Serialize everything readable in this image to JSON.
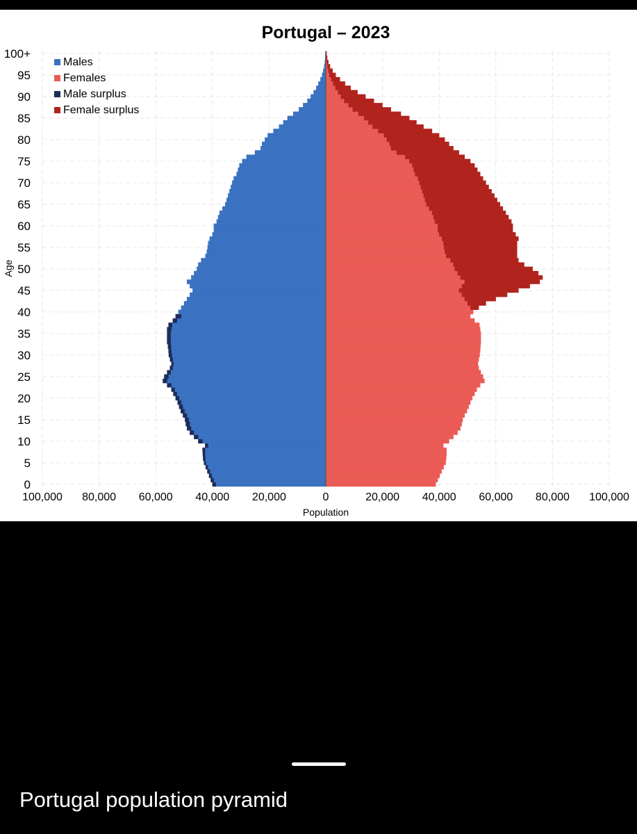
{
  "caption": "Portugal population pyramid",
  "colors": {
    "males": "#3a72c1",
    "females": "#eb5b55",
    "male_surplus": "#1c2d5a",
    "female_surplus": "#b1231d",
    "axis": "#555555",
    "grid": "#e6e6e6"
  },
  "chart_data": {
    "type": "population-pyramid",
    "title": "Portugal – 2023",
    "xlabel": "Population",
    "ylabel": "Age",
    "xlim": [
      -100000,
      100000
    ],
    "x_ticks": [
      -100000,
      -80000,
      -60000,
      -40000,
      -20000,
      0,
      20000,
      40000,
      60000,
      80000,
      100000
    ],
    "x_tick_labels": [
      "100,000",
      "80,000",
      "60,000",
      "40,000",
      "20,000",
      "0",
      "20,000",
      "40,000",
      "60,000",
      "80,000",
      "100,000"
    ],
    "y_ticks": [
      0,
      5,
      10,
      15,
      20,
      25,
      30,
      35,
      40,
      45,
      50,
      55,
      60,
      65,
      70,
      75,
      80,
      85,
      90,
      95,
      100
    ],
    "y_tick_labels": [
      "0",
      "5",
      "10",
      "15",
      "20",
      "25",
      "30",
      "35",
      "40",
      "45",
      "50",
      "55",
      "60",
      "65",
      "70",
      "75",
      "80",
      "85",
      "90",
      "95",
      "100+"
    ],
    "legend_position": "top-left",
    "legend": [
      {
        "label": "Males",
        "color": "#3a72c1"
      },
      {
        "label": "Females",
        "color": "#eb5b55"
      },
      {
        "label": "Male surplus",
        "color": "#1c2d5a"
      },
      {
        "label": "Female surplus",
        "color": "#b1231d"
      }
    ],
    "ages": [
      0,
      1,
      2,
      3,
      4,
      5,
      6,
      7,
      8,
      9,
      10,
      11,
      12,
      13,
      14,
      15,
      16,
      17,
      18,
      19,
      20,
      21,
      22,
      23,
      24,
      25,
      26,
      27,
      28,
      29,
      30,
      31,
      32,
      33,
      34,
      35,
      36,
      37,
      38,
      39,
      40,
      41,
      42,
      43,
      44,
      45,
      46,
      47,
      48,
      49,
      50,
      51,
      52,
      53,
      54,
      55,
      56,
      57,
      58,
      59,
      60,
      61,
      62,
      63,
      64,
      65,
      66,
      67,
      68,
      69,
      70,
      71,
      72,
      73,
      74,
      75,
      76,
      77,
      78,
      79,
      80,
      81,
      82,
      83,
      84,
      85,
      86,
      87,
      88,
      89,
      90,
      91,
      92,
      93,
      94,
      95,
      96,
      97,
      98,
      99,
      100
    ],
    "series": [
      {
        "name": "Males",
        "values": [
          40000,
          40600,
          41200,
          41800,
          42400,
          43000,
          43300,
          43400,
          43500,
          42600,
          45000,
          46500,
          48000,
          49000,
          49400,
          49700,
          50400,
          51200,
          51800,
          52300,
          53000,
          53800,
          54500,
          56000,
          57500,
          57000,
          56000,
          55000,
          54500,
          55000,
          55400,
          55500,
          55700,
          56000,
          56000,
          56000,
          56000,
          55500,
          54000,
          53000,
          52000,
          51000,
          50000,
          49000,
          48000,
          47000,
          48000,
          49000,
          47500,
          46500,
          45500,
          45000,
          44000,
          42500,
          42000,
          41700,
          41500,
          41000,
          40000,
          39500,
          39500,
          38500,
          38000,
          37500,
          36500,
          35500,
          35000,
          34500,
          34000,
          33500,
          33000,
          32500,
          31500,
          31000,
          30500,
          29500,
          28000,
          25000,
          23000,
          22500,
          21500,
          20500,
          18500,
          16500,
          15000,
          13500,
          11500,
          9500,
          8000,
          6500,
          5300,
          4300,
          3400,
          2600,
          1900,
          1300,
          900,
          550,
          350,
          200,
          150
        ]
      },
      {
        "name": "Females",
        "values": [
          38800,
          39500,
          40200,
          40900,
          41600,
          42300,
          42500,
          42600,
          42600,
          41500,
          43500,
          45000,
          46500,
          47500,
          48000,
          48300,
          49000,
          49800,
          50400,
          51000,
          51700,
          52500,
          53300,
          54500,
          56000,
          55500,
          54700,
          54000,
          53700,
          54000,
          54300,
          54500,
          54600,
          54700,
          54700,
          54700,
          54500,
          54200,
          52500,
          51000,
          52000,
          54000,
          56500,
          60000,
          64000,
          68000,
          72000,
          75500,
          76500,
          75000,
          73000,
          70000,
          68000,
          67500,
          67500,
          67500,
          67500,
          68000,
          67000,
          66000,
          66000,
          65500,
          64500,
          63500,
          62500,
          61500,
          60500,
          59500,
          58500,
          57500,
          56500,
          55500,
          54500,
          53500,
          52500,
          51000,
          49000,
          47000,
          45000,
          43500,
          42000,
          40000,
          37500,
          34500,
          32000,
          29500,
          26500,
          23000,
          20000,
          17000,
          14000,
          11200,
          8800,
          6800,
          5000,
          3500,
          2400,
          1500,
          900,
          500,
          300
        ]
      }
    ]
  }
}
